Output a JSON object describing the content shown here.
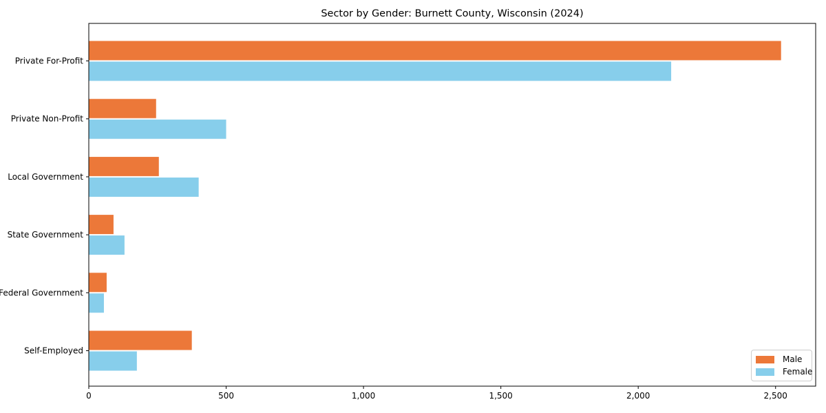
{
  "title": "Sector by Gender: Burnett County, Wisconsin (2024)",
  "colors": {
    "male": "#ec7839",
    "female": "#87ceeb",
    "axis": "#000000",
    "legend_border": "#cccccc",
    "background": "#ffffff"
  },
  "legend": {
    "position": "lower-right",
    "entries": [
      "Male",
      "Female"
    ]
  },
  "chart_data": {
    "type": "bar",
    "orientation": "horizontal",
    "title": "Sector by Gender: Burnett County, Wisconsin (2024)",
    "categories": [
      "Private For-Profit",
      "Private Non-Profit",
      "Local Government",
      "State Government",
      "Federal Government",
      "Self-Employed"
    ],
    "series": [
      {
        "name": "Male",
        "color": "#ec7839",
        "values": [
          2520,
          245,
          255,
          90,
          65,
          375
        ]
      },
      {
        "name": "Female",
        "color": "#87ceeb",
        "values": [
          2120,
          500,
          400,
          130,
          55,
          175
        ]
      }
    ],
    "xlabel": "",
    "ylabel": "",
    "xlim": [
      0,
      2646
    ],
    "x_ticks": [
      0,
      500,
      1000,
      1500,
      2000,
      2500
    ],
    "x_tick_labels": [
      "0",
      "500",
      "1,000",
      "1,500",
      "2,000",
      "2,500"
    ],
    "grid": false,
    "legend_position": "lower-right"
  }
}
